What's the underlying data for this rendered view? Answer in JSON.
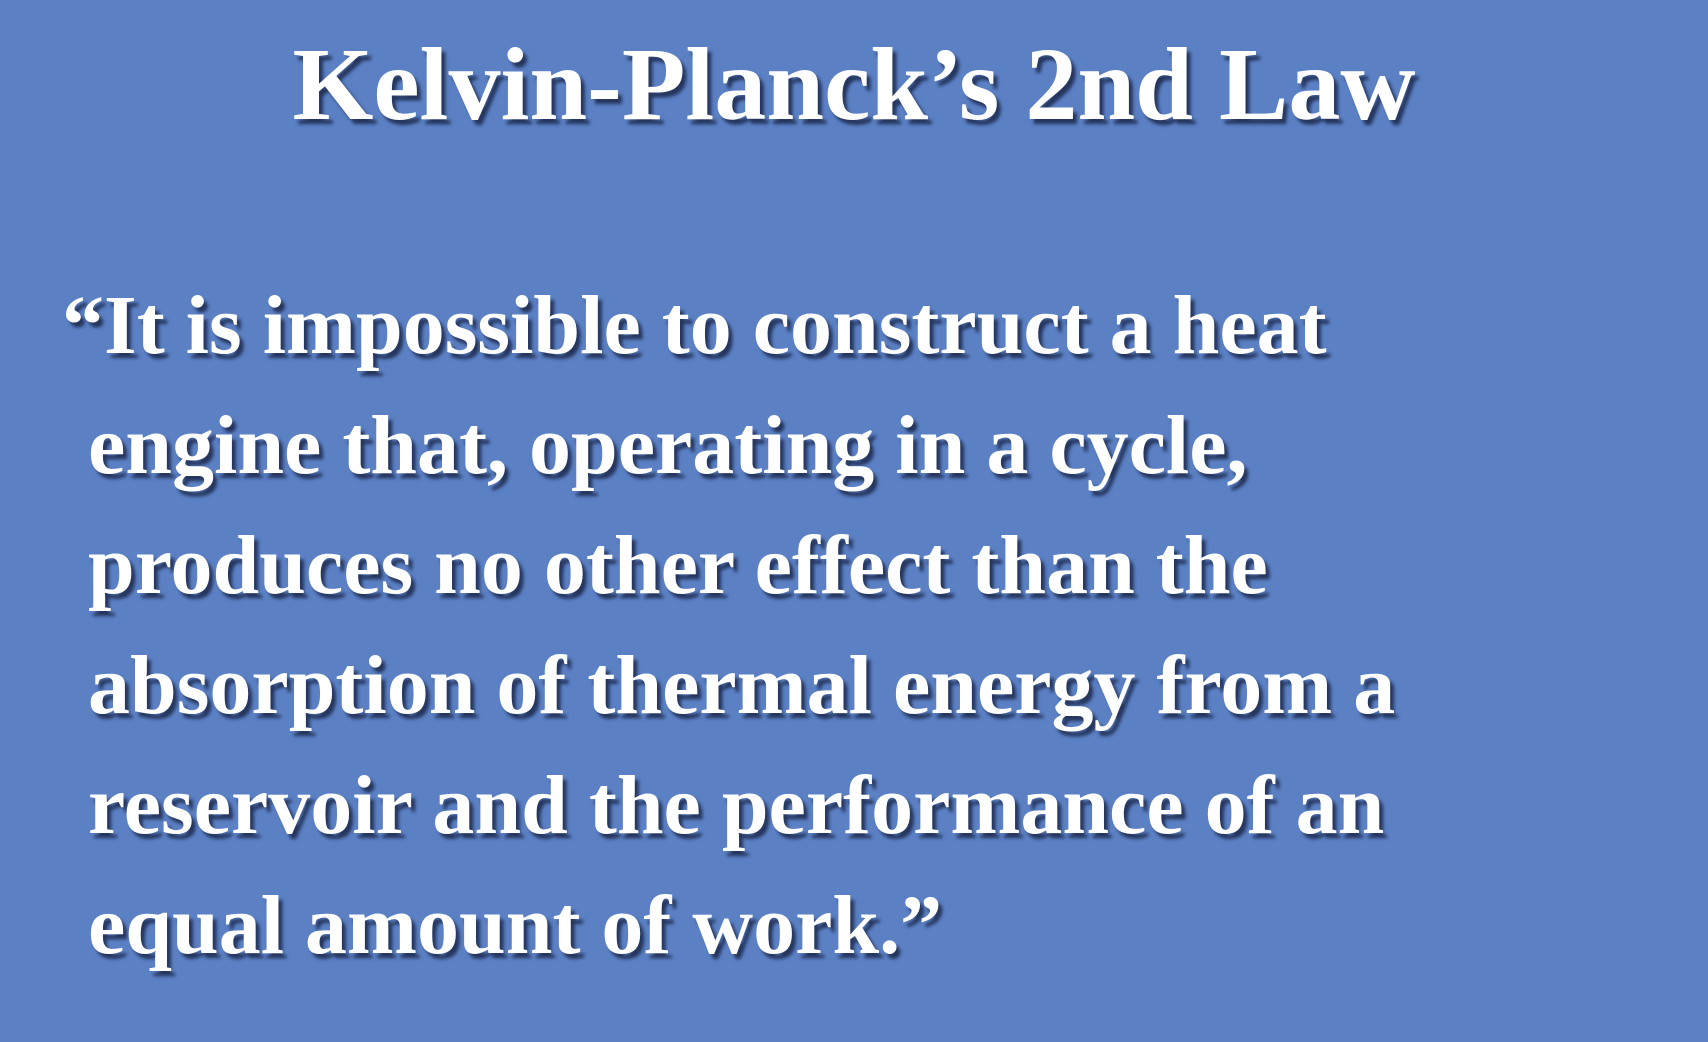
{
  "slide": {
    "title": "Kelvin-Planck’s 2nd Law",
    "background_color": "#5b80c4",
    "text_color": "#ffffff",
    "quote_lines": [
      "“It is impossible to construct a heat",
      "engine that, operating in a cycle,",
      "produces no other effect than the",
      "absorption of thermal energy from a",
      "reservoir and the performance of an",
      "equal amount of work.”"
    ]
  }
}
